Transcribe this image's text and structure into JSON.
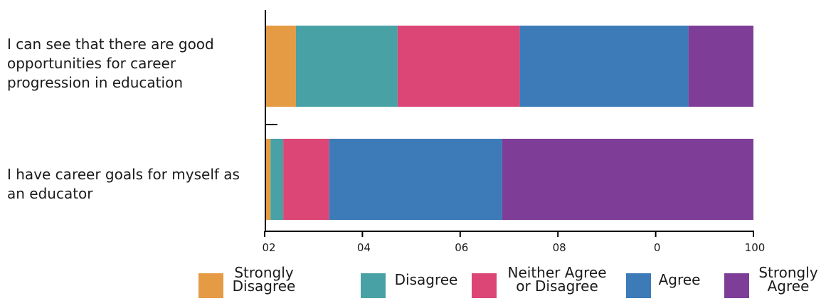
{
  "chart_data": {
    "type": "bar",
    "orientation": "horizontal",
    "stacked": true,
    "categories": [
      "I can see that there are good opportunities for career progression in education",
      "I have career goals for myself as an educator"
    ],
    "series": [
      {
        "name": "Strongly Disagree",
        "color": "#e59b43",
        "values": [
          6.4,
          1.2
        ]
      },
      {
        "name": "Disagree",
        "color": "#48a1a5",
        "values": [
          20.8,
          2.6
        ]
      },
      {
        "name": "Neither Agree or Disagree",
        "color": "#dc4677",
        "values": [
          25.0,
          9.4
        ]
      },
      {
        "name": "Agree",
        "color": "#3c7bb8",
        "values": [
          34.5,
          35.4
        ]
      },
      {
        "name": "Strongly Agree",
        "color": "#7e3e98",
        "values": [
          13.3,
          51.4
        ]
      }
    ],
    "xlim": [
      0,
      100
    ],
    "xticks": [
      0,
      20,
      40,
      60,
      80,
      100
    ],
    "xtick_labels": [
      "02",
      "04",
      "06",
      "08",
      "0",
      "100"
    ],
    "grid": false,
    "legend_position": "bottom",
    "legend_labels": [
      "Strongly\nDisagree",
      "Disagree",
      "Neither Agree\nor Disagree",
      "Agree",
      "Strongly\nAgree"
    ]
  }
}
